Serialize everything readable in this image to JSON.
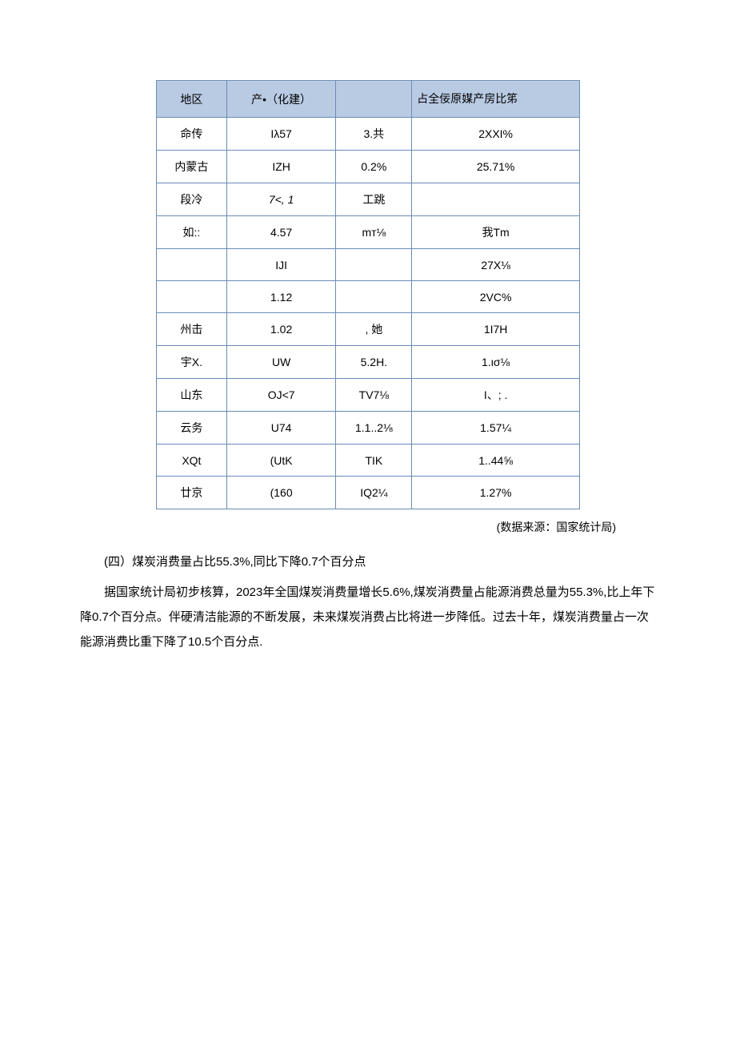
{
  "table": {
    "border_color": "#6a8bb8",
    "header_bg": "#b7c9e2",
    "header_fontsize": 14,
    "cell_fontsize": 14,
    "columns": [
      "地区",
      "产•（化建）",
      "",
      "占全佞原媒产房比笫"
    ],
    "rows": [
      {
        "c0": "命传",
        "c1": "Iλ57",
        "c2": "3.共",
        "c3": "2XXI%"
      },
      {
        "c0": "内蒙古",
        "c1": "IZH",
        "c2": "0.2%",
        "c3": "25.71%"
      },
      {
        "c0": "段冷",
        "c1": "7<,  1",
        "c2": "工跳",
        "c3": "",
        "c1_italic": true
      },
      {
        "c0": "如::",
        "c1": "4.57",
        "c2": "mт⅛",
        "c3": "我Tm"
      },
      {
        "c0": "",
        "c1": "IJI",
        "c2": "",
        "c3": "27X⅛"
      },
      {
        "c0": "",
        "c1": "1.12",
        "c2": "",
        "c3": "2VC%"
      },
      {
        "c0": "州击",
        "c1": "1.02",
        "c2": ",  她",
        "c3": "1I7H"
      },
      {
        "c0": "宇X.",
        "c1": "UW",
        "c2": "5.2H.",
        "c3": "1.ισ⅛"
      },
      {
        "c0": "山东",
        "c1": "OJ<7",
        "c2": "TV7⅛",
        "c3": "I、;  ."
      },
      {
        "c0": "云务",
        "c1": "U74",
        "c2": "1.1..2⅛",
        "c3": "1.57¼"
      },
      {
        "c0": "XQt",
        "c1": "(UtK",
        "c2": "TIK",
        "c3": "1..44⅝"
      },
      {
        "c0": "廿京",
        "c1": "(160",
        "c2": "IQ2¼",
        "c3": "1.27%"
      }
    ]
  },
  "source": "(数据来源：国家统计局)",
  "subtitle": "(四）煤炭消费量占比55.3%,同比下降0.7个百分点",
  "paragraph": "据国家统计局初步核算，2023年全国煤炭消费量增长5.6%,煤炭消费量占能源消费总量为55.3%,比上年下降0.7个百分点。伴硬清洁能源的不断发展，未来煤炭消费占比将进一步降低。过去十年，煤炭消费量占一次能源消费比重下降了10.5个百分点."
}
